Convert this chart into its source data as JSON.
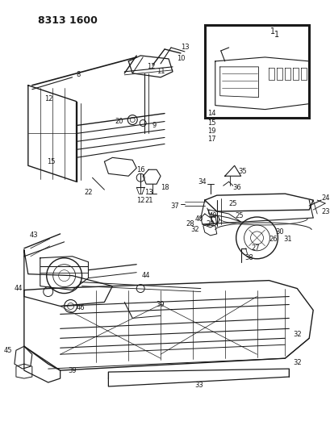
{
  "title": "8313 1600",
  "bg": "#ffffff",
  "lc": "#1a1a1a",
  "fig_w": 4.1,
  "fig_h": 5.33,
  "dpi": 100
}
